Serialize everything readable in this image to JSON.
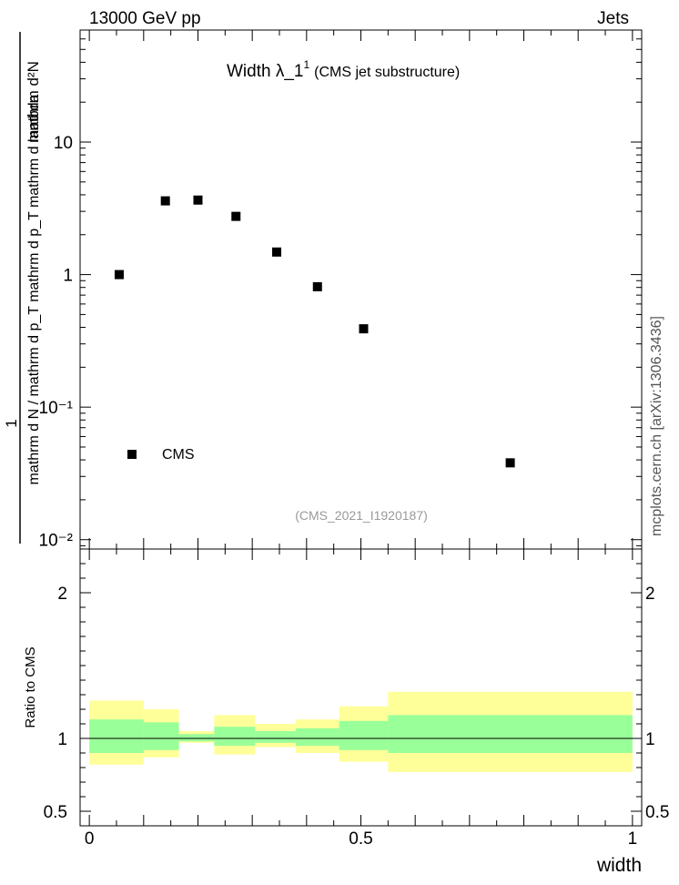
{
  "header": {
    "left": "13000 GeV pp",
    "right": "Jets"
  },
  "side_label": "mcplots.cern.ch [arXiv:1306.3436]",
  "chart_data": [
    {
      "type": "scatter",
      "title_main": "Width λ_1",
      "title_sup": "1",
      "title_note": "(CMS jet substructure)",
      "analysis_tag": "(CMS_2021_I1920187)",
      "ylabel_numerator": "1",
      "ylabel_denominator": "mathrm d N / mathrm d p_T mathrm d p_T mathrm d lambda",
      "ylabel_top": "mathrm d²N",
      "yscale": "log",
      "ylim": [
        0.0085,
        70
      ],
      "xlim": [
        -0.017,
        1.017
      ],
      "ytick_labels": [
        "10",
        "1",
        "10⁻¹",
        "10⁻²"
      ],
      "ytick_values": [
        10,
        1,
        0.1,
        0.01
      ],
      "legend": {
        "position": "bottom-left",
        "entries": [
          "CMS"
        ]
      },
      "series": [
        {
          "name": "CMS",
          "marker": "square",
          "color": "#000000",
          "x": [
            0.055,
            0.14,
            0.2,
            0.27,
            0.345,
            0.42,
            0.505,
            0.775
          ],
          "y": [
            1.0,
            3.6,
            3.65,
            2.75,
            1.48,
            0.81,
            0.39,
            0.038
          ]
        }
      ]
    },
    {
      "type": "area",
      "ylabel": "Ratio to CMS",
      "xlabel": "width",
      "ylim": [
        0.4,
        2.3
      ],
      "xlim": [
        -0.017,
        1.017
      ],
      "xtick_labels": [
        "0",
        "0.5",
        "1"
      ],
      "xtick_values": [
        0,
        0.5,
        1
      ],
      "ytick_labels": [
        "2",
        "1",
        "0.5"
      ],
      "ytick_values": [
        2,
        1,
        0.5
      ],
      "reference_line": 1,
      "bins": [
        {
          "x_low": 0.0,
          "x_high": 0.1,
          "inner": [
            0.9,
            1.13
          ],
          "outer": [
            0.82,
            1.26
          ]
        },
        {
          "x_low": 0.1,
          "x_high": 0.165,
          "inner": [
            0.92,
            1.11
          ],
          "outer": [
            0.87,
            1.2
          ]
        },
        {
          "x_low": 0.165,
          "x_high": 0.23,
          "inner": [
            0.98,
            1.03
          ],
          "outer": [
            0.97,
            1.05
          ]
        },
        {
          "x_low": 0.23,
          "x_high": 0.305,
          "inner": [
            0.95,
            1.08
          ],
          "outer": [
            0.89,
            1.16
          ]
        },
        {
          "x_low": 0.305,
          "x_high": 0.38,
          "inner": [
            0.97,
            1.05
          ],
          "outer": [
            0.94,
            1.1
          ]
        },
        {
          "x_low": 0.38,
          "x_high": 0.46,
          "inner": [
            0.95,
            1.07
          ],
          "outer": [
            0.9,
            1.13
          ]
        },
        {
          "x_low": 0.46,
          "x_high": 0.55,
          "inner": [
            0.92,
            1.12
          ],
          "outer": [
            0.84,
            1.22
          ]
        },
        {
          "x_low": 0.55,
          "x_high": 1.0,
          "inner": [
            0.9,
            1.16
          ],
          "outer": [
            0.77,
            1.32
          ]
        }
      ],
      "colors": {
        "inner": "#99ff99",
        "outer": "#ffff99"
      }
    }
  ]
}
